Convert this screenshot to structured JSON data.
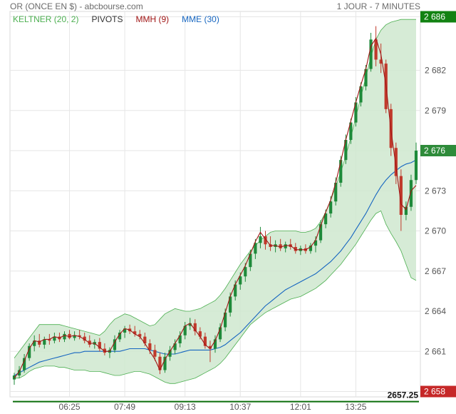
{
  "header": {
    "title": "OR (ONCE EN $) - abcbourse.com",
    "period": "1 JOUR - 7 MINUTES"
  },
  "legend": {
    "keltner": "KELTNER (20, 2)",
    "pivots": "PIVOTS",
    "mmh": "MMH (9)",
    "mme": "MME (30)"
  },
  "colors": {
    "up": "#1e8a3a",
    "down": "#c0392b",
    "keltner_fill": "#cfe8cf",
    "keltner_line": "#4caf50",
    "mmh": "#a01515",
    "mme": "#1565c0",
    "pivot": "#0a6d0a",
    "badge_top": "#128212",
    "badge_last": "#2e8b3a",
    "badge_pivot": "#c62828"
  },
  "chart_data": {
    "type": "candlestick",
    "xlabels": [
      "06:25",
      "07:49",
      "09:13",
      "10:37",
      "12:01",
      "13:25"
    ],
    "ylabels": [
      "2 658",
      "2 661",
      "2 664",
      "2 667",
      "2 670",
      "2 673",
      "2 676",
      "2 679",
      "2 682",
      "2 686"
    ],
    "ylim": [
      2657.6,
      2686.4
    ],
    "badges": {
      "top": "2 686",
      "last": "2 676",
      "pivot": "2 658"
    },
    "pivot": {
      "value": 2657.25,
      "label": "2657.25"
    },
    "candles": [
      [
        2658.9,
        2659.4,
        2658.5,
        2659.2
      ],
      [
        2659.2,
        2659.9,
        2659.0,
        2659.6
      ],
      [
        2659.6,
        2660.8,
        2659.4,
        2660.5
      ],
      [
        2660.5,
        2661.6,
        2660.3,
        2661.4
      ],
      [
        2661.4,
        2662.2,
        2661.0,
        2661.8
      ],
      [
        2661.8,
        2662.3,
        2661.3,
        2661.5
      ],
      [
        2661.5,
        2662.1,
        2661.2,
        2661.9
      ],
      [
        2661.9,
        2662.3,
        2661.5,
        2661.8
      ],
      [
        2661.8,
        2662.4,
        2661.6,
        2662.1
      ],
      [
        2662.1,
        2662.4,
        2661.7,
        2661.9
      ],
      [
        2661.9,
        2662.5,
        2661.7,
        2662.3
      ],
      [
        2662.3,
        2662.6,
        2661.9,
        2662.0
      ],
      [
        2662.0,
        2662.5,
        2661.8,
        2662.2
      ],
      [
        2662.2,
        2662.6,
        2661.9,
        2662.1
      ],
      [
        2662.1,
        2662.4,
        2661.6,
        2661.8
      ],
      [
        2661.8,
        2662.2,
        2661.3,
        2661.5
      ],
      [
        2661.5,
        2661.9,
        2661.2,
        2661.7
      ],
      [
        2661.7,
        2662.0,
        2661.0,
        2661.2
      ],
      [
        2661.2,
        2661.6,
        2660.7,
        2660.9
      ],
      [
        2660.9,
        2661.3,
        2660.5,
        2661.1
      ],
      [
        2661.1,
        2662.2,
        2660.9,
        2661.9
      ],
      [
        2661.9,
        2662.6,
        2661.7,
        2662.4
      ],
      [
        2662.4,
        2662.9,
        2662.0,
        2662.7
      ],
      [
        2662.7,
        2663.0,
        2662.3,
        2662.5
      ],
      [
        2662.5,
        2662.9,
        2662.1,
        2662.3
      ],
      [
        2662.3,
        2662.6,
        2661.9,
        2662.1
      ],
      [
        2662.1,
        2662.4,
        2661.4,
        2661.6
      ],
      [
        2661.6,
        2661.9,
        2660.8,
        2661.1
      ],
      [
        2661.1,
        2661.5,
        2660.3,
        2660.6
      ],
      [
        2660.6,
        2660.9,
        2659.3,
        2659.6
      ],
      [
        2659.6,
        2660.9,
        2659.4,
        2660.6
      ],
      [
        2660.6,
        2661.4,
        2660.3,
        2661.1
      ],
      [
        2661.1,
        2661.9,
        2660.8,
        2661.6
      ],
      [
        2661.6,
        2662.5,
        2661.3,
        2662.2
      ],
      [
        2662.2,
        2663.2,
        2661.9,
        2662.9
      ],
      [
        2662.9,
        2663.5,
        2662.6,
        2663.1
      ],
      [
        2663.1,
        2663.4,
        2662.2,
        2662.5
      ],
      [
        2662.5,
        2662.8,
        2661.9,
        2662.1
      ],
      [
        2662.1,
        2662.4,
        2661.2,
        2661.4
      ],
      [
        2661.4,
        2661.8,
        2660.2,
        2661.2
      ],
      [
        2661.2,
        2662.2,
        2660.9,
        2661.9
      ],
      [
        2661.9,
        2663.1,
        2661.7,
        2662.8
      ],
      [
        2662.8,
        2664.2,
        2662.5,
        2663.9
      ],
      [
        2663.9,
        2665.4,
        2663.6,
        2665.1
      ],
      [
        2665.1,
        2666.3,
        2664.8,
        2666.0
      ],
      [
        2666.0,
        2666.9,
        2665.6,
        2666.6
      ],
      [
        2666.6,
        2667.6,
        2666.2,
        2667.3
      ],
      [
        2667.3,
        2668.6,
        2667.0,
        2668.3
      ],
      [
        2668.3,
        2669.4,
        2667.9,
        2669.1
      ],
      [
        2669.1,
        2670.3,
        2668.7,
        2669.6
      ],
      [
        2669.6,
        2670.0,
        2668.6,
        2669.0
      ],
      [
        2669.0,
        2669.6,
        2668.5,
        2668.8
      ],
      [
        2668.8,
        2669.3,
        2668.4,
        2669.0
      ],
      [
        2669.0,
        2669.4,
        2668.5,
        2668.7
      ],
      [
        2668.7,
        2669.2,
        2668.4,
        2669.0
      ],
      [
        2669.0,
        2669.4,
        2668.6,
        2668.8
      ],
      [
        2668.8,
        2669.1,
        2668.3,
        2668.5
      ],
      [
        2668.5,
        2668.9,
        2668.2,
        2668.7
      ],
      [
        2668.7,
        2669.0,
        2668.3,
        2668.5
      ],
      [
        2668.5,
        2669.1,
        2668.3,
        2668.9
      ],
      [
        2668.9,
        2669.6,
        2668.4,
        2669.3
      ],
      [
        2669.3,
        2670.8,
        2669.1,
        2670.5
      ],
      [
        2670.5,
        2671.6,
        2670.2,
        2671.3
      ],
      [
        2671.3,
        2672.6,
        2671.0,
        2672.2
      ],
      [
        2672.2,
        2674.0,
        2671.9,
        2673.6
      ],
      [
        2673.6,
        2675.6,
        2673.3,
        2675.3
      ],
      [
        2675.3,
        2677.2,
        2675.0,
        2676.8
      ],
      [
        2676.8,
        2678.4,
        2676.5,
        2678.1
      ],
      [
        2678.1,
        2680.0,
        2677.8,
        2679.6
      ],
      [
        2679.6,
        2681.1,
        2679.3,
        2680.8
      ],
      [
        2680.8,
        2682.4,
        2680.5,
        2682.1
      ],
      [
        2682.1,
        2684.8,
        2681.9,
        2684.3
      ],
      [
        2684.3,
        2685.3,
        2682.3,
        2682.8
      ],
      [
        2682.8,
        2684.0,
        2681.8,
        2682.5
      ],
      [
        2682.5,
        2682.8,
        2678.8,
        2679.1
      ],
      [
        2679.1,
        2679.5,
        2675.6,
        2676.2
      ],
      [
        2676.2,
        2676.6,
        2673.5,
        2674.1
      ],
      [
        2674.1,
        2674.6,
        2670.0,
        2671.2
      ],
      [
        2671.2,
        2672.2,
        2670.8,
        2671.8
      ],
      [
        2671.8,
        2674.2,
        2671.5,
        2673.8
      ],
      [
        2673.8,
        2676.6,
        2673.5,
        2676.0
      ]
    ],
    "keltner_upper": [
      2660.5,
      2661.0,
      2661.5,
      2662.0,
      2662.5,
      2663.0,
      2663.0,
      2663.0,
      2663.0,
      2663.0,
      2662.9,
      2662.8,
      2662.7,
      2662.6,
      2662.5,
      2662.4,
      2662.3,
      2662.2,
      2662.5,
      2663.0,
      2663.4,
      2663.6,
      2663.8,
      2663.7,
      2663.5,
      2663.3,
      2663.1,
      2662.9,
      2663.0,
      2663.4,
      2663.8,
      2664.0,
      2664.2,
      2664.1,
      2664.0,
      2664.0,
      2664.1,
      2664.2,
      2664.4,
      2664.6,
      2664.8,
      2665.2,
      2665.7,
      2666.3,
      2666.9,
      2667.5,
      2668.0,
      2668.5,
      2668.9,
      2669.3,
      2669.6,
      2669.9,
      2670.0,
      2670.0,
      2670.0,
      2670.0,
      2670.0,
      2669.9,
      2669.9,
      2670.0,
      2670.2,
      2670.7,
      2671.4,
      2672.3,
      2673.3,
      2674.4,
      2675.6,
      2677.0,
      2678.5,
      2680.0,
      2681.5,
      2683.0,
      2684.3,
      2685.0,
      2685.4,
      2685.6,
      2685.7,
      2685.8,
      2685.8,
      2685.8,
      2685.8
    ],
    "keltner_lower": [
      2659.0,
      2659.0,
      2659.2,
      2659.5,
      2659.7,
      2659.8,
      2659.9,
      2659.9,
      2659.9,
      2659.8,
      2659.8,
      2659.7,
      2659.6,
      2659.6,
      2659.6,
      2659.5,
      2659.5,
      2659.5,
      2659.4,
      2659.3,
      2659.2,
      2659.2,
      2659.3,
      2659.4,
      2659.5,
      2659.5,
      2659.4,
      2659.3,
      2659.1,
      2658.9,
      2658.7,
      2658.6,
      2658.6,
      2658.7,
      2658.8,
      2658.9,
      2659.0,
      2659.2,
      2659.4,
      2659.6,
      2659.8,
      2660.1,
      2660.5,
      2661.0,
      2661.5,
      2662.0,
      2662.5,
      2663.0,
      2663.3,
      2663.6,
      2663.9,
      2664.1,
      2664.3,
      2664.5,
      2664.7,
      2664.9,
      2665.0,
      2665.1,
      2665.3,
      2665.5,
      2665.7,
      2666.0,
      2666.3,
      2666.7,
      2667.1,
      2667.5,
      2668.0,
      2668.5,
      2669.0,
      2669.6,
      2670.2,
      2670.8,
      2671.3,
      2671.5,
      2670.5,
      2669.8,
      2669.2,
      2668.5,
      2667.5,
      2666.5,
      2666.3
    ],
    "mme": [
      2659.2,
      2659.4,
      2659.6,
      2659.8,
      2660.0,
      2660.2,
      2660.3,
      2660.4,
      2660.5,
      2660.6,
      2660.7,
      2660.8,
      2660.9,
      2660.9,
      2661.0,
      2661.0,
      2661.0,
      2661.0,
      2661.0,
      2661.0,
      2661.0,
      2661.0,
      2661.1,
      2661.2,
      2661.2,
      2661.2,
      2661.2,
      2661.1,
      2661.0,
      2660.9,
      2660.8,
      2660.8,
      2660.8,
      2660.9,
      2661.0,
      2661.1,
      2661.1,
      2661.1,
      2661.1,
      2661.1,
      2661.2,
      2661.3,
      2661.5,
      2661.8,
      2662.1,
      2662.4,
      2662.8,
      2663.2,
      2663.6,
      2664.0,
      2664.4,
      2664.7,
      2665.0,
      2665.3,
      2665.6,
      2665.8,
      2666.0,
      2666.2,
      2666.4,
      2666.6,
      2666.8,
      2667.1,
      2667.4,
      2667.7,
      2668.1,
      2668.5,
      2669.0,
      2669.5,
      2670.1,
      2670.7,
      2671.3,
      2672.0,
      2672.7,
      2673.3,
      2673.8,
      2674.2,
      2674.5,
      2674.8,
      2675.0,
      2675.1,
      2675.3
    ],
    "mmh": [
      2659.0,
      2659.5,
      2660.3,
      2661.2,
      2661.8,
      2661.7,
      2661.9,
      2661.9,
      2662.1,
      2662.0,
      2662.2,
      2662.1,
      2662.2,
      2662.1,
      2661.9,
      2661.6,
      2661.6,
      2661.3,
      2661.0,
      2661.0,
      2661.7,
      2662.3,
      2662.7,
      2662.6,
      2662.3,
      2662.1,
      2661.6,
      2661.0,
      2660.4,
      2659.6,
      2660.4,
      2661.0,
      2661.6,
      2662.2,
      2662.9,
      2663.1,
      2662.6,
      2662.1,
      2661.5,
      2661.2,
      2661.8,
      2662.7,
      2663.9,
      2665.1,
      2666.0,
      2666.7,
      2667.4,
      2668.3,
      2669.2,
      2669.9,
      2669.4,
      2668.9,
      2668.9,
      2668.8,
      2668.9,
      2668.9,
      2668.6,
      2668.6,
      2668.6,
      2668.8,
      2669.3,
      2670.4,
      2671.4,
      2672.3,
      2673.6,
      2675.2,
      2676.8,
      2678.2,
      2679.6,
      2680.9,
      2682.1,
      2683.8,
      2684.4,
      2683.2,
      2680.9,
      2677.5,
      2674.8,
      2672.0,
      2671.6,
      2673.0,
      2673.4
    ]
  }
}
